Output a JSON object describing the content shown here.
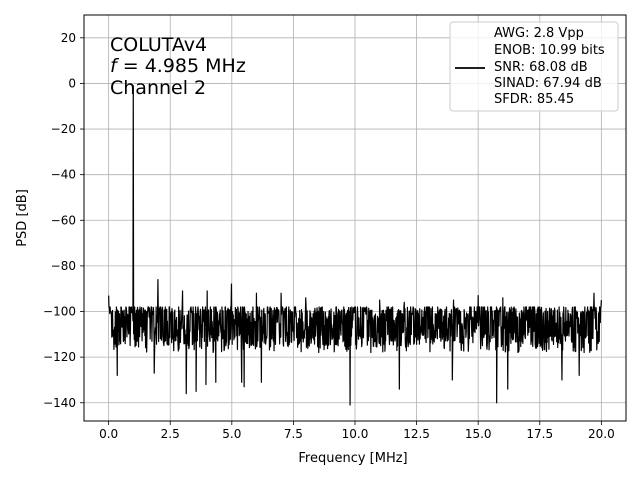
{
  "chart_data": {
    "type": "line",
    "xlabel": "Frequency [MHz]",
    "ylabel": "PSD [dB]",
    "xlim": [
      -1.0,
      21.0
    ],
    "ylim": [
      -148.0,
      30.0
    ],
    "xticks": [
      0.0,
      2.5,
      5.0,
      7.5,
      10.0,
      12.5,
      15.0,
      17.5,
      20.0
    ],
    "xtick_labels": [
      "0.0",
      "2.5",
      "5.0",
      "7.5",
      "10.0",
      "12.5",
      "15.0",
      "17.5",
      "20.0"
    ],
    "yticks": [
      20,
      0,
      -20,
      -40,
      -60,
      -80,
      -100,
      -120,
      -140
    ],
    "ytick_labels": [
      "20",
      "0",
      "−20",
      "−40",
      "−60",
      "−80",
      "−100",
      "−120",
      "−140"
    ],
    "grid": true,
    "annotation": {
      "line1": "COLUTAv4",
      "line2_italic": "f",
      "line2_rest": " = 4.985 MHz",
      "line3": "Channel 2"
    },
    "legend": {
      "placement": "top-right",
      "lines": [
        "AWG: 2.8 Vpp",
        "ENOB: 10.99 bits",
        "SNR: 68.08 dB",
        "SINAD: 67.94 dB",
        "SFDR: 85.45"
      ]
    },
    "series": [
      {
        "color": "#000000",
        "noise_floor_db": [
          -120,
          -98
        ],
        "x_range": [
          0.0,
          20.0
        ],
        "peaks": [
          {
            "x": 0.0,
            "y": -93
          },
          {
            "x": 1.0,
            "y": -1
          },
          {
            "x": 2.0,
            "y": -86
          },
          {
            "x": 3.0,
            "y": -91
          },
          {
            "x": 4.0,
            "y": -91
          },
          {
            "x": 4.985,
            "y": -88
          },
          {
            "x": 6.0,
            "y": -92
          },
          {
            "x": 7.0,
            "y": -92
          },
          {
            "x": 8.0,
            "y": -94
          },
          {
            "x": 11.0,
            "y": -95
          },
          {
            "x": 12.0,
            "y": -96
          },
          {
            "x": 14.0,
            "y": -95
          },
          {
            "x": 15.0,
            "y": -93
          },
          {
            "x": 16.0,
            "y": -94
          },
          {
            "x": 19.7,
            "y": -92
          },
          {
            "x": 20.0,
            "y": -95
          }
        ],
        "dips": [
          {
            "x": 0.35,
            "y": -128
          },
          {
            "x": 1.85,
            "y": -127
          },
          {
            "x": 3.15,
            "y": -136
          },
          {
            "x": 3.55,
            "y": -135
          },
          {
            "x": 3.95,
            "y": -132
          },
          {
            "x": 4.35,
            "y": -131
          },
          {
            "x": 5.4,
            "y": -131
          },
          {
            "x": 5.5,
            "y": -133
          },
          {
            "x": 6.2,
            "y": -131
          },
          {
            "x": 9.8,
            "y": -141
          },
          {
            "x": 11.8,
            "y": -134
          },
          {
            "x": 13.95,
            "y": -130
          },
          {
            "x": 15.75,
            "y": -140
          },
          {
            "x": 16.2,
            "y": -134
          },
          {
            "x": 18.4,
            "y": -130
          },
          {
            "x": 19.1,
            "y": -128
          }
        ]
      }
    ]
  }
}
